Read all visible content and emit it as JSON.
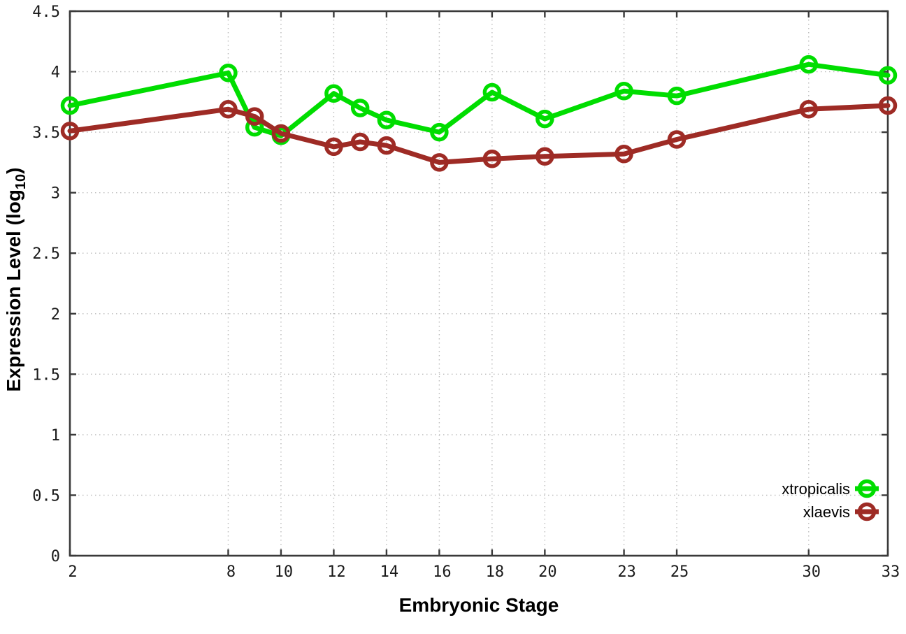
{
  "chart_data": {
    "type": "line",
    "title": "",
    "xlabel": "Embryonic Stage",
    "ylabel_prefix": "Expression Level (log",
    "ylabel_subscript": "10",
    "ylabel_suffix": ")",
    "xlim": [
      2,
      33
    ],
    "ylim": [
      0,
      4.5
    ],
    "grid": true,
    "legend_position": "bottom-right",
    "x": [
      2,
      8,
      9,
      10,
      12,
      13,
      14,
      16,
      18,
      20,
      23,
      25,
      30,
      33
    ],
    "xtick_labels": [
      2,
      8,
      10,
      12,
      14,
      16,
      18,
      20,
      23,
      25,
      30,
      33
    ],
    "ytick_labels": [
      "0",
      "0.5",
      "1",
      "1.5",
      "2",
      "2.5",
      "3",
      "3.5",
      "4",
      "4.5"
    ],
    "ytick_values": [
      0,
      0.5,
      1,
      1.5,
      2,
      2.5,
      3,
      3.5,
      4,
      4.5
    ],
    "series": [
      {
        "name": "xtropicalis",
        "color": "#00dd00",
        "values": [
          3.72,
          3.99,
          3.54,
          3.47,
          3.82,
          3.7,
          3.6,
          3.5,
          3.83,
          3.61,
          3.84,
          3.8,
          4.06,
          3.97
        ]
      },
      {
        "name": "xlaevis",
        "color": "#9e2b25",
        "values": [
          3.51,
          3.69,
          3.63,
          3.49,
          3.38,
          3.42,
          3.39,
          3.25,
          3.28,
          3.3,
          3.32,
          3.44,
          3.69,
          3.72
        ]
      }
    ],
    "colors": {
      "border": "#3a3a3a",
      "grid": "#bcbcbc",
      "tick_text": "#1a1a1a",
      "background": "#ffffff"
    }
  }
}
